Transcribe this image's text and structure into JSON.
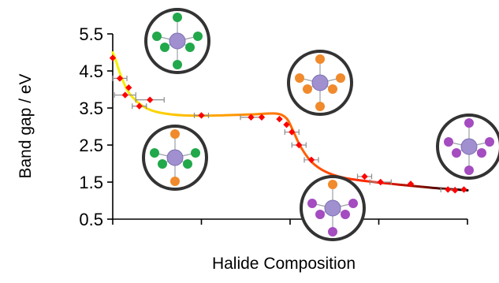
{
  "chart_data": {
    "type": "scatter",
    "title": "",
    "xlabel": "Halide Composition",
    "ylabel": "Band gap / eV",
    "xlim": [
      0,
      1
    ],
    "ylim": [
      0.5,
      5.5
    ],
    "yticks": [
      "0.5",
      "1.5",
      "2.5",
      "3.5",
      "4.5",
      "5.5"
    ],
    "grid": false,
    "series": [
      {
        "marker": "diamond",
        "color": "#ff0000",
        "points": [
          {
            "x": 0.0,
            "y": 4.85
          },
          {
            "x": 0.02,
            "y": 4.3,
            "xerr": 0.02
          },
          {
            "x": 0.045,
            "y": 4.05
          },
          {
            "x": 0.035,
            "y": 3.85,
            "xerr": 0.03
          },
          {
            "x": 0.075,
            "y": 3.55,
            "xerr": 0.02
          },
          {
            "x": 0.105,
            "y": 3.72,
            "xerr": 0.04
          },
          {
            "x": 0.25,
            "y": 3.3,
            "xerr": 0.02
          },
          {
            "x": 0.39,
            "y": 3.25,
            "xerr": 0.03
          },
          {
            "x": 0.42,
            "y": 3.25
          },
          {
            "x": 0.47,
            "y": 3.2
          },
          {
            "x": 0.49,
            "y": 3.05
          },
          {
            "x": 0.505,
            "y": 2.85,
            "xerr": 0.02
          },
          {
            "x": 0.525,
            "y": 2.5,
            "xerr": 0.02
          },
          {
            "x": 0.56,
            "y": 2.1,
            "xerr": 0.02
          },
          {
            "x": 0.71,
            "y": 1.65,
            "xerr": 0.02
          },
          {
            "x": 0.755,
            "y": 1.5,
            "xerr": 0.03
          },
          {
            "x": 0.84,
            "y": 1.45
          },
          {
            "x": 0.945,
            "y": 1.3,
            "xerr": 0.02
          },
          {
            "x": 0.965,
            "y": 1.28
          },
          {
            "x": 0.99,
            "y": 1.3
          }
        ]
      }
    ],
    "fit_curve": {
      "gradient": [
        "#f5f500",
        "#ffb000",
        "#ff6a00",
        "#ff1a00",
        "#000000"
      ],
      "points": [
        [
          0.0,
          5.0
        ],
        [
          0.01,
          4.75
        ],
        [
          0.02,
          4.45
        ],
        [
          0.04,
          4.0
        ],
        [
          0.06,
          3.75
        ],
        [
          0.09,
          3.52
        ],
        [
          0.13,
          3.38
        ],
        [
          0.2,
          3.3
        ],
        [
          0.3,
          3.3
        ],
        [
          0.4,
          3.33
        ],
        [
          0.46,
          3.35
        ],
        [
          0.49,
          3.22
        ],
        [
          0.51,
          2.85
        ],
        [
          0.53,
          2.45
        ],
        [
          0.56,
          2.05
        ],
        [
          0.6,
          1.78
        ],
        [
          0.65,
          1.62
        ],
        [
          0.72,
          1.52
        ],
        [
          0.82,
          1.42
        ],
        [
          0.92,
          1.33
        ],
        [
          1.0,
          1.28
        ]
      ]
    },
    "insets": [
      {
        "name": "inset-top-left",
        "ligands": [
          "green",
          "green",
          "green",
          "green",
          "green",
          "green"
        ]
      },
      {
        "name": "inset-mid-left",
        "ligands": [
          "orange",
          "green",
          "green",
          "orange",
          "green",
          "green"
        ]
      },
      {
        "name": "inset-top-middle",
        "ligands": [
          "orange",
          "orange",
          "orange",
          "orange",
          "orange",
          "orange"
        ]
      },
      {
        "name": "inset-bottom-middle",
        "ligands": [
          "orange",
          "purple",
          "purple",
          "purple",
          "purple",
          "purple"
        ]
      },
      {
        "name": "inset-right",
        "ligands": [
          "purple",
          "purple",
          "purple",
          "purple",
          "purple",
          "purple"
        ]
      }
    ],
    "colors": {
      "point": "#ff0000",
      "errorbar": "#8c8c8c",
      "inset_border": "#333333",
      "metal": "#a090d0",
      "green": "#21a84a",
      "orange": "#f08a2c",
      "purple": "#a44cc0"
    }
  }
}
